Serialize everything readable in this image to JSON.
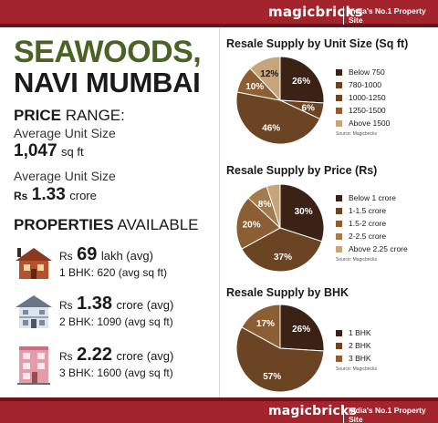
{
  "brand": {
    "name": "magicbricks",
    "tagline": "India's No.1 Property Site"
  },
  "location": {
    "line1": "SEAWOODS,",
    "line2": "NAVI MUMBAI"
  },
  "price_range": {
    "heading_bold": "PRICE",
    "heading_rest": " RANGE:",
    "size_label": "Average Unit Size",
    "size_value": "1,047",
    "size_unit": "sq ft",
    "price_label": "Average Unit Size",
    "price_prefix": "Rs",
    "price_value": "1.33",
    "price_unit": "crore"
  },
  "properties": {
    "heading_bold": "PROPERTIES",
    "heading_rest": " AVAILABLE",
    "items": [
      {
        "prefix": "Rs",
        "value": "69",
        "unit": "lakh (avg)",
        "desc": "1 BHK: 620 (avg sq ft)"
      },
      {
        "prefix": "Rs",
        "value": "1.38",
        "unit": "crore (avg)",
        "desc": "2 BHK: 1090 (avg sq ft)"
      },
      {
        "prefix": "Rs",
        "value": "2.22",
        "unit": "crore (avg)",
        "desc": "3 BHK: 1600 (avg sq ft)"
      }
    ]
  },
  "colors": {
    "brand_red": "#a3242c",
    "city_green": "#4a6325",
    "pie_dark": "#3a2214",
    "pie_mid": "#6b4423",
    "pie_light": "#8b5e34",
    "pie_lighter": "#a47b4d",
    "pie_tan": "#c7a57a"
  },
  "chart_data": [
    {
      "type": "pie",
      "title": "Resale Supply by Unit Size (Sq ft)",
      "categories": [
        "Below 750",
        "780-1000",
        "1000-1250",
        "1250-1500",
        "Above 1500"
      ],
      "values": [
        26,
        6,
        46,
        10,
        12
      ],
      "labels": [
        "26%",
        "6%",
        "46%",
        "10%",
        "12%"
      ],
      "colors": [
        "#3a2214",
        "#6b4423",
        "#6b4423",
        "#8b5e34",
        "#c7a57a"
      ],
      "source": "Source: Magicbricks",
      "legend": "right"
    },
    {
      "type": "pie",
      "title": "Resale Supply by Price (Rs)",
      "categories": [
        "Below 1 crore",
        "1-1.5 crore",
        "1.5-2 crore",
        "2-2.5 crore",
        "Above 2.25 crore"
      ],
      "values": [
        30,
        37,
        20,
        8,
        5
      ],
      "labels": [
        "30%",
        "37%",
        "20%",
        "8%",
        "5%"
      ],
      "colors": [
        "#3a2214",
        "#6b4423",
        "#8b5e34",
        "#a47b4d",
        "#c7a57a"
      ],
      "source": "Source: Magicbricks",
      "legend": "right"
    },
    {
      "type": "pie",
      "title": "Resale Supply by BHK",
      "categories": [
        "1 BHK",
        "2 BHK",
        "3 BHK"
      ],
      "values": [
        26,
        57,
        17
      ],
      "labels": [
        "26%",
        "57%",
        "17%"
      ],
      "colors": [
        "#3a2214",
        "#6b4423",
        "#8b5e34"
      ],
      "source": "Source: Magicbricks",
      "legend": "right"
    }
  ]
}
